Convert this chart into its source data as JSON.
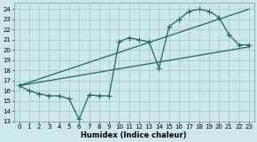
{
  "xlabel": "Humidex (Indice chaleur)",
  "background_color": "#cce8e8",
  "grid_color": "#aacccc",
  "line_color": "#1a6b5a",
  "xlim": [
    -0.5,
    23.5
  ],
  "ylim": [
    13,
    24.6
  ],
  "yticks": [
    13,
    14,
    15,
    16,
    17,
    18,
    19,
    20,
    21,
    22,
    23,
    24
  ],
  "xticks": [
    0,
    1,
    2,
    3,
    4,
    5,
    6,
    7,
    8,
    9,
    10,
    11,
    12,
    13,
    14,
    15,
    16,
    17,
    18,
    19,
    20,
    21,
    22,
    23
  ],
  "line1_x": [
    0,
    1,
    2,
    3,
    4,
    5,
    6,
    7,
    8,
    9,
    10,
    11,
    12,
    13,
    14,
    15,
    16,
    17,
    18,
    19,
    20,
    21,
    22,
    23
  ],
  "line1_y": [
    16.5,
    16.0,
    15.7,
    15.5,
    15.5,
    15.2,
    13.2,
    15.6,
    15.5,
    15.5,
    20.8,
    21.2,
    21.0,
    20.8,
    18.2,
    22.3,
    23.0,
    23.8,
    24.0,
    23.8,
    23.2,
    21.5,
    20.5,
    20.5
  ],
  "line2_x": [
    0,
    23
  ],
  "line2_y": [
    16.5,
    20.3
  ],
  "line3_x": [
    0,
    23
  ],
  "line3_y": [
    16.5,
    24.0
  ],
  "marker_size": 2.5,
  "line_width": 0.9,
  "xlabel_fontsize": 6.0,
  "tick_fontsize": 5.0
}
